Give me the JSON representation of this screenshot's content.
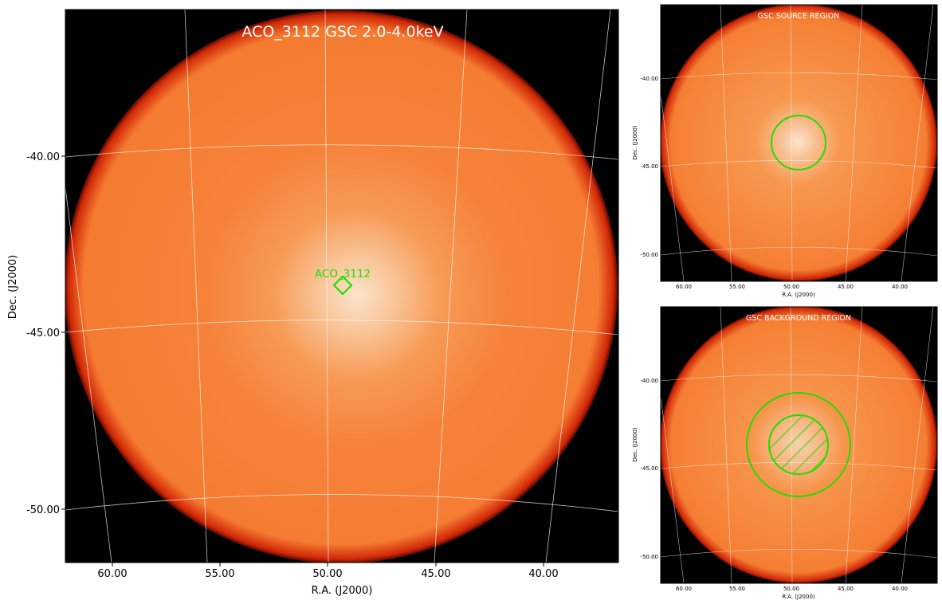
{
  "main": {
    "title": "ACO_3112 GSC 2.0-4.0keV",
    "source_label": "ACO_3112",
    "xlabel": "R.A. (J2000)",
    "ylabel": "Dec. (J2000)",
    "ra_ticks": [
      "60.00",
      "55.00",
      "50.00",
      "45.00",
      "40.00"
    ],
    "dec_ticks": [
      "-40.00",
      "-45.00",
      "-50.00"
    ]
  },
  "source_region": {
    "title": "GSC SOURCE REGION",
    "xlabel": "R.A. (J2000)",
    "ylabel": "Dec. (J2000)",
    "ra_ticks": [
      "60.00",
      "55.00",
      "50.00",
      "45.00",
      "40.00"
    ],
    "dec_ticks": [
      "-40.00",
      "-45.00",
      "-50.00"
    ]
  },
  "background_region": {
    "title": "GSC BACKGROUND REGION",
    "xlabel": "R.A. (J2000)",
    "ylabel": "Dec. (J2000)",
    "ra_ticks": [
      "60.00",
      "55.00",
      "50.00",
      "45.00",
      "40.00"
    ],
    "dec_ticks": [
      "-40.00",
      "-45.00",
      "-50.00"
    ]
  },
  "colors": {
    "image_core": "#fdf2e6",
    "image_fill": "#f7802f",
    "image_edge": "#d21c00",
    "outside": "#000000",
    "grid": "#ffffff",
    "region": "#22dd00"
  }
}
